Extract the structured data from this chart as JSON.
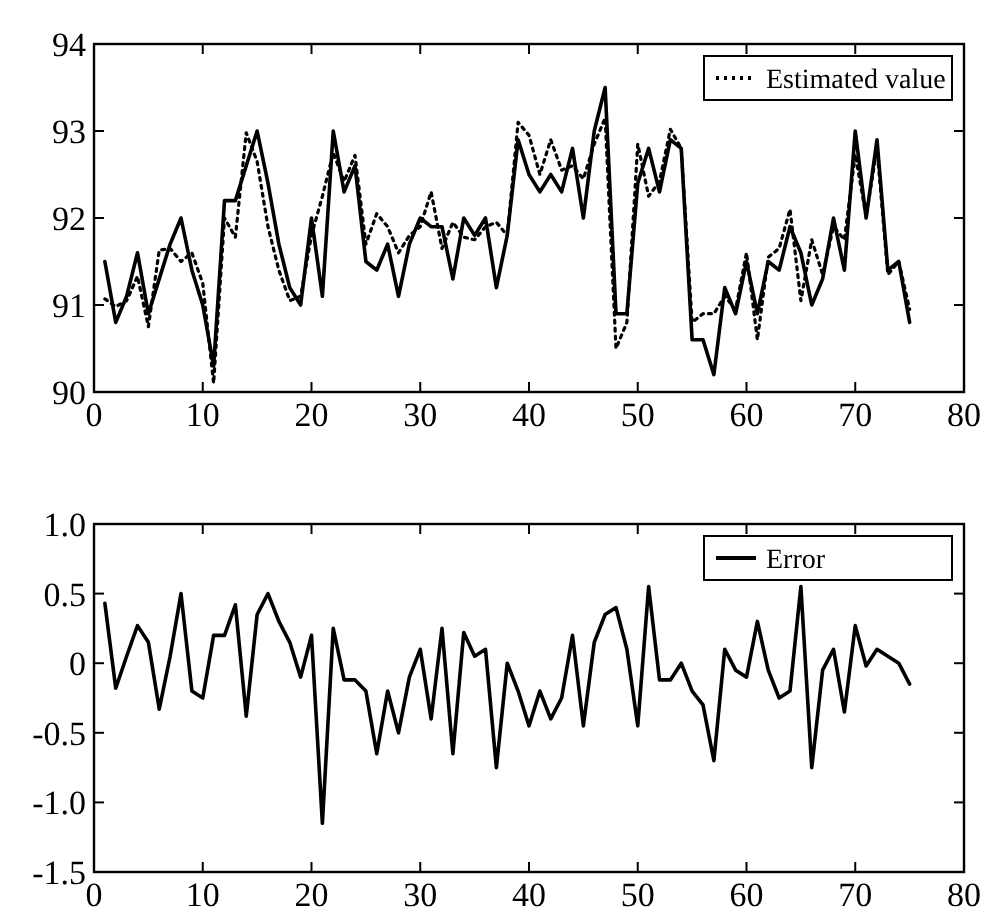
{
  "chart_data": [
    {
      "type": "line",
      "x": [
        1,
        2,
        3,
        4,
        5,
        6,
        7,
        8,
        9,
        10,
        11,
        12,
        13,
        14,
        15,
        16,
        17,
        18,
        19,
        20,
        21,
        22,
        23,
        24,
        25,
        26,
        27,
        28,
        29,
        30,
        31,
        32,
        33,
        34,
        35,
        36,
        37,
        38,
        39,
        40,
        41,
        42,
        43,
        44,
        45,
        46,
        47,
        48,
        49,
        50,
        51,
        52,
        53,
        54,
        55,
        56,
        57,
        58,
        59,
        60,
        61,
        62,
        63,
        64,
        65,
        66,
        67,
        68,
        69,
        70,
        71,
        72,
        73,
        74,
        75
      ],
      "series": [
        {
          "color": "#000000",
          "line_style": "solid",
          "values": [
            91.5,
            90.8,
            91.1,
            91.6,
            90.9,
            91.3,
            91.7,
            92.0,
            91.4,
            91.0,
            90.3,
            92.2,
            92.2,
            92.6,
            93.0,
            92.4,
            91.7,
            91.2,
            91.0,
            92.0,
            91.1,
            93.0,
            92.3,
            92.6,
            91.5,
            91.4,
            91.7,
            91.1,
            91.7,
            92.0,
            91.9,
            91.9,
            91.3,
            92.0,
            91.8,
            92.0,
            91.2,
            91.8,
            92.9,
            92.5,
            92.3,
            92.5,
            92.3,
            92.8,
            92.0,
            93.0,
            93.5,
            90.9,
            90.9,
            92.4,
            92.8,
            92.3,
            92.9,
            92.8,
            90.6,
            90.6,
            90.2,
            91.2,
            90.9,
            91.5,
            90.9,
            91.5,
            91.4,
            91.9,
            91.6,
            91.0,
            91.3,
            92.0,
            91.4,
            93.0,
            92.0,
            92.9,
            91.4,
            91.5,
            90.8
          ]
        },
        {
          "name": "Estimated value",
          "color": "#000000",
          "line_style": "dotted",
          "values": [
            91.07,
            90.98,
            91.05,
            91.33,
            90.75,
            91.63,
            91.65,
            91.5,
            91.6,
            91.25,
            90.1,
            92.0,
            91.78,
            92.98,
            92.65,
            91.9,
            91.4,
            91.05,
            91.1,
            91.8,
            92.25,
            92.75,
            92.42,
            92.72,
            91.7,
            92.05,
            91.9,
            91.6,
            91.8,
            91.9,
            92.3,
            91.65,
            91.95,
            91.78,
            91.75,
            91.9,
            91.95,
            91.8,
            93.1,
            92.95,
            92.5,
            92.9,
            92.55,
            92.6,
            92.45,
            92.85,
            93.15,
            90.5,
            90.8,
            92.85,
            92.25,
            92.42,
            93.02,
            92.8,
            90.8,
            90.9,
            90.9,
            91.1,
            90.95,
            91.6,
            90.6,
            91.55,
            91.65,
            92.1,
            91.05,
            91.75,
            91.35,
            91.9,
            91.75,
            92.73,
            92.02,
            92.8,
            91.35,
            91.5,
            90.95
          ]
        }
      ],
      "xlim": [
        0,
        80
      ],
      "xticks": [
        0,
        10,
        20,
        30,
        40,
        50,
        60,
        70,
        80
      ],
      "ylim": [
        90,
        94
      ],
      "yticks": [
        90,
        91,
        92,
        93,
        94
      ],
      "grid": false,
      "legend": "top right"
    },
    {
      "type": "line",
      "x": [
        1,
        2,
        3,
        4,
        5,
        6,
        7,
        8,
        9,
        10,
        11,
        12,
        13,
        14,
        15,
        16,
        17,
        18,
        19,
        20,
        21,
        22,
        23,
        24,
        25,
        26,
        27,
        28,
        29,
        30,
        31,
        32,
        33,
        34,
        35,
        36,
        37,
        38,
        39,
        40,
        41,
        42,
        43,
        44,
        45,
        46,
        47,
        48,
        49,
        50,
        51,
        52,
        53,
        54,
        55,
        56,
        57,
        58,
        59,
        60,
        61,
        62,
        63,
        64,
        65,
        66,
        67,
        68,
        69,
        70,
        71,
        72,
        73,
        74,
        75
      ],
      "series": [
        {
          "name": "Error",
          "color": "#000000",
          "line_style": "solid",
          "values": [
            0.43,
            -0.18,
            0.05,
            0.27,
            0.15,
            -0.33,
            0.05,
            0.5,
            -0.2,
            -0.25,
            0.2,
            0.2,
            0.42,
            -0.38,
            0.35,
            0.5,
            0.3,
            0.15,
            -0.1,
            0.2,
            -1.15,
            0.25,
            -0.12,
            -0.12,
            -0.2,
            -0.65,
            -0.2,
            -0.5,
            -0.1,
            0.1,
            -0.4,
            0.25,
            -0.65,
            0.22,
            0.05,
            0.1,
            -0.75,
            0.0,
            -0.2,
            -0.45,
            -0.2,
            -0.4,
            -0.25,
            0.2,
            -0.45,
            0.15,
            0.35,
            0.4,
            0.1,
            -0.45,
            0.55,
            -0.12,
            -0.12,
            0.0,
            -0.2,
            -0.3,
            -0.7,
            0.1,
            -0.05,
            -0.1,
            0.3,
            -0.05,
            -0.25,
            -0.2,
            0.55,
            -0.75,
            -0.05,
            0.1,
            -0.35,
            0.27,
            -0.02,
            0.1,
            0.05,
            0.0,
            -0.15
          ]
        }
      ],
      "xlim": [
        0,
        80
      ],
      "xticks": [
        0,
        10,
        20,
        30,
        40,
        50,
        60,
        70,
        80
      ],
      "ylim": [
        -1.5,
        1.0
      ],
      "yticks": [
        {
          "value": -1.5,
          "label": "-1.5"
        },
        {
          "value": -1,
          "label": "-1.0"
        },
        {
          "value": -0.5,
          "label": "-0.5"
        },
        0,
        {
          "value": 0.5,
          "label": "0.5"
        },
        {
          "value": 1,
          "label": "1.0"
        }
      ],
      "grid": false,
      "legend": "top right"
    }
  ]
}
